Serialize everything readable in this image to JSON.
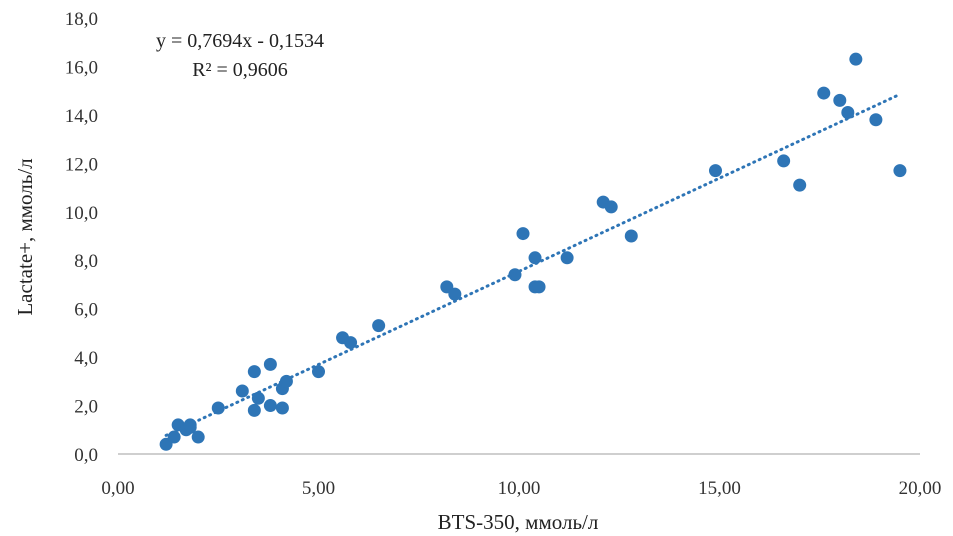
{
  "colors": {
    "point": "#2e75b6",
    "trendline": "#2e75b6",
    "axis": "#bfbfbf",
    "text": "#222222"
  },
  "chart_data": {
    "type": "scatter",
    "xlabel": "BTS-350, ммоль/л",
    "ylabel": "Lactate+, ммоль/л",
    "xlim": [
      0,
      20
    ],
    "ylim": [
      0,
      18
    ],
    "x_ticks": [
      "0,00",
      "5,00",
      "10,00",
      "15,00",
      "20,00"
    ],
    "y_ticks": [
      "0,0",
      "2,0",
      "4,0",
      "6,0",
      "8,0",
      "10,0",
      "12,0",
      "14,0",
      "16,0",
      "18,0"
    ],
    "grid": false,
    "legend": "none",
    "trendline": {
      "style": "dotted",
      "slope": 0.7694,
      "intercept": -0.1534,
      "x_range": [
        1.2,
        19.5
      ],
      "equation": "y = 0,7694x - 0,1534",
      "r2": "R² = 0,9606"
    },
    "series": [
      {
        "points": [
          [
            1.2,
            0.4
          ],
          [
            1.4,
            0.7
          ],
          [
            1.5,
            1.2
          ],
          [
            1.7,
            1.0
          ],
          [
            1.8,
            1.1
          ],
          [
            1.8,
            1.2
          ],
          [
            2.0,
            0.7
          ],
          [
            2.5,
            1.9
          ],
          [
            3.1,
            2.6
          ],
          [
            3.4,
            3.4
          ],
          [
            3.4,
            1.8
          ],
          [
            3.5,
            2.3
          ],
          [
            3.8,
            2.0
          ],
          [
            3.8,
            3.7
          ],
          [
            4.1,
            2.7
          ],
          [
            4.1,
            1.9
          ],
          [
            4.2,
            3.0
          ],
          [
            5.0,
            3.4
          ],
          [
            5.6,
            4.8
          ],
          [
            5.8,
            4.6
          ],
          [
            6.5,
            5.3
          ],
          [
            8.2,
            6.9
          ],
          [
            8.4,
            6.6
          ],
          [
            9.9,
            7.4
          ],
          [
            10.1,
            9.1
          ],
          [
            10.4,
            8.1
          ],
          [
            10.4,
            6.9
          ],
          [
            10.5,
            6.9
          ],
          [
            11.2,
            8.1
          ],
          [
            12.1,
            10.4
          ],
          [
            12.3,
            10.2
          ],
          [
            12.8,
            9.0
          ],
          [
            14.9,
            11.7
          ],
          [
            16.6,
            12.1
          ],
          [
            17.0,
            11.1
          ],
          [
            17.6,
            14.9
          ],
          [
            18.0,
            14.6
          ],
          [
            18.2,
            14.1
          ],
          [
            18.4,
            16.3
          ],
          [
            18.9,
            13.8
          ],
          [
            19.5,
            11.7
          ]
        ]
      }
    ]
  }
}
